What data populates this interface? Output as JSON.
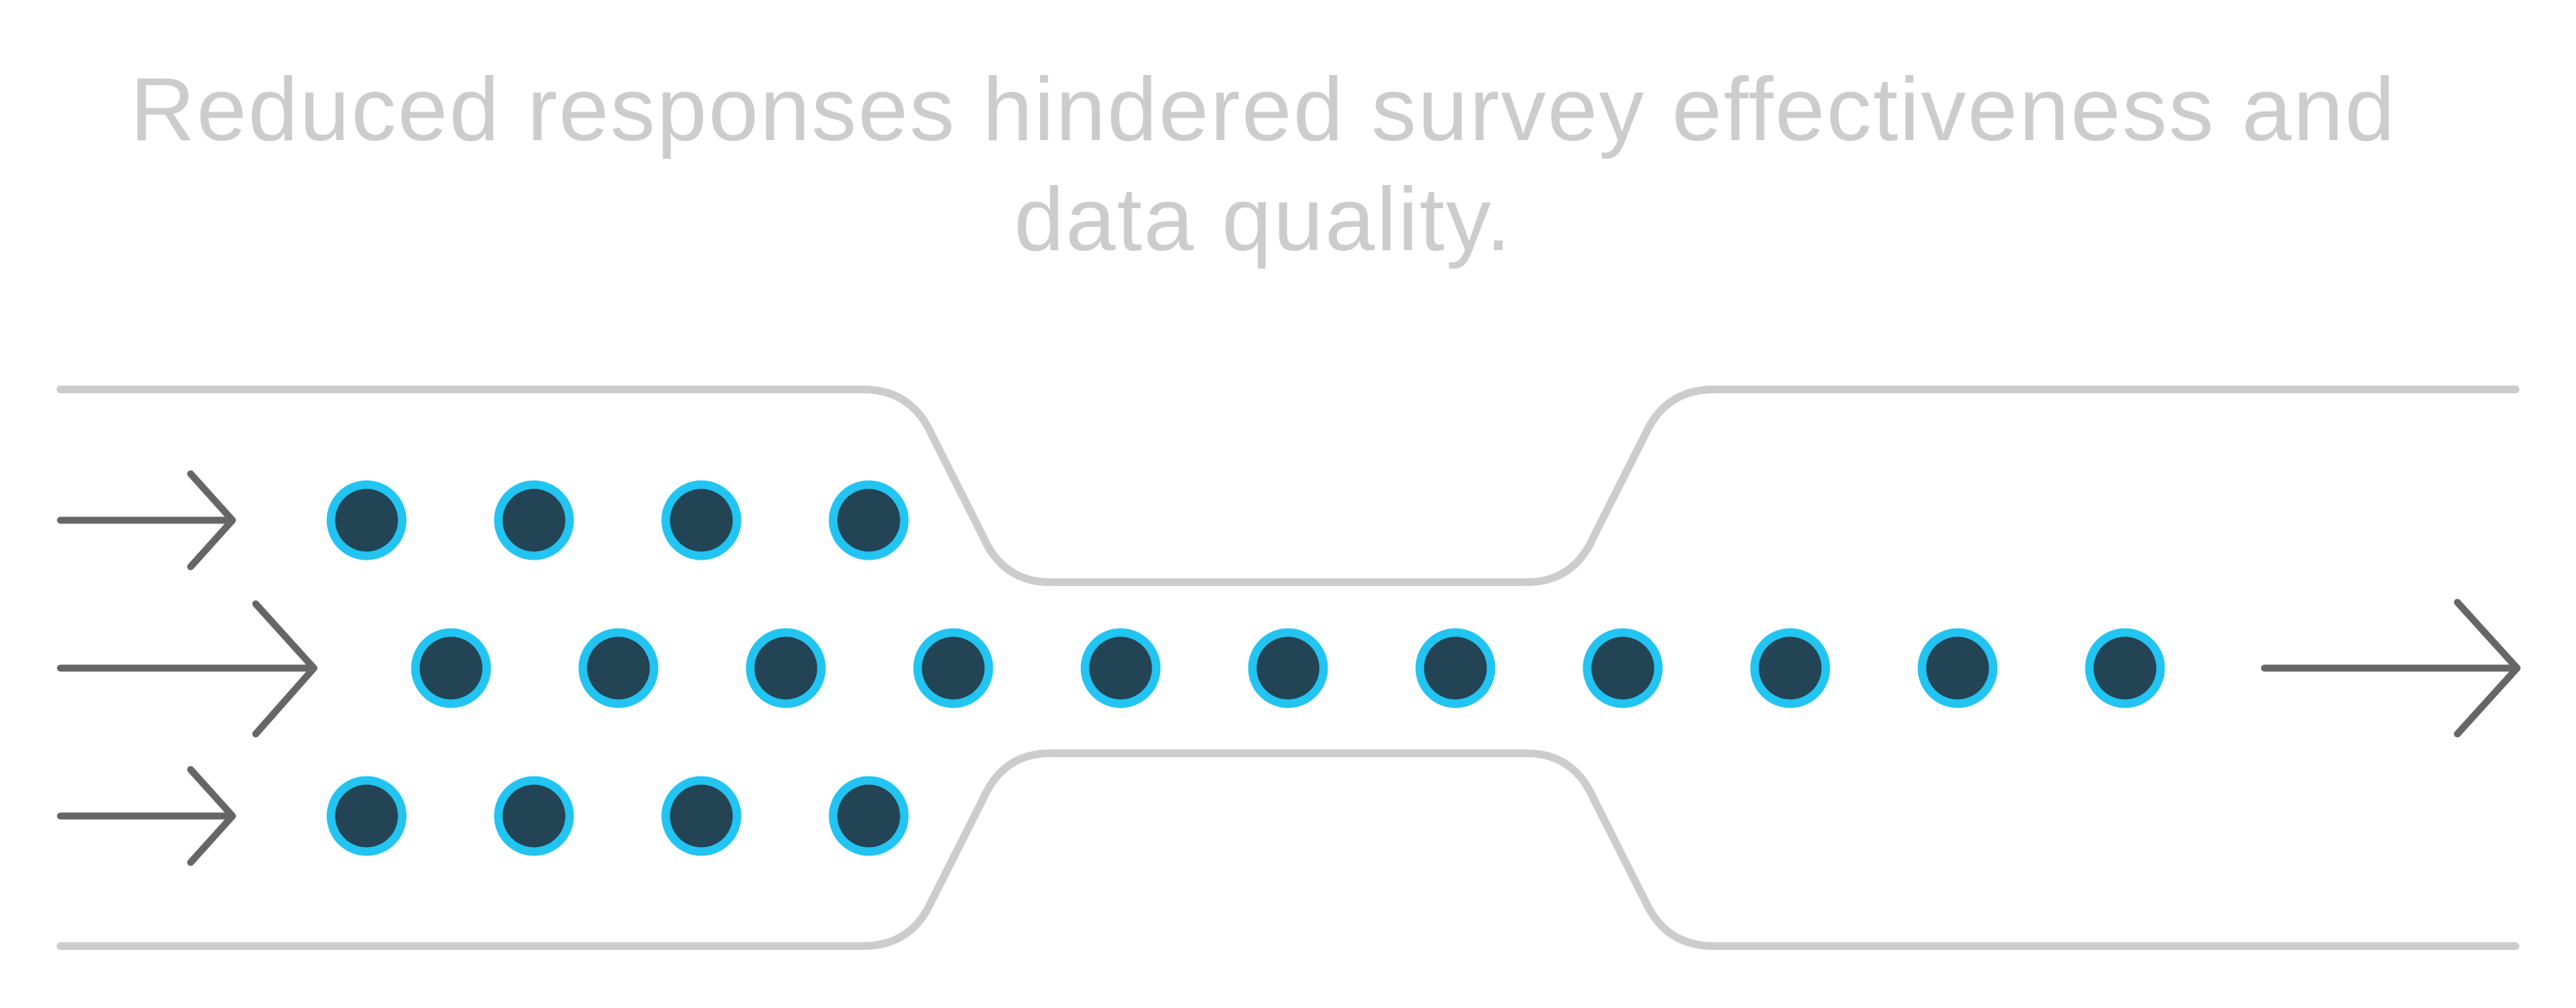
{
  "title": "Reduced responses hindered survey effectiveness and data quality.",
  "colors": {
    "background": "#ffffff",
    "title_text": "#cccccc",
    "channel_wall": "#cccccc",
    "arrow": "#666666",
    "dot_fill": "#224455",
    "dot_ring": "#22c4f2"
  },
  "flow": {
    "input_lanes": 3,
    "output_lanes": 1,
    "lanes": [
      {
        "name": "top",
        "dots": 4
      },
      {
        "name": "middle",
        "dots": 11
      },
      {
        "name": "bottom",
        "dots": 4
      }
    ],
    "icons": {
      "input_arrow": "arrow-right-icon",
      "output_arrow": "arrow-right-icon",
      "dot": "circle-icon"
    }
  }
}
